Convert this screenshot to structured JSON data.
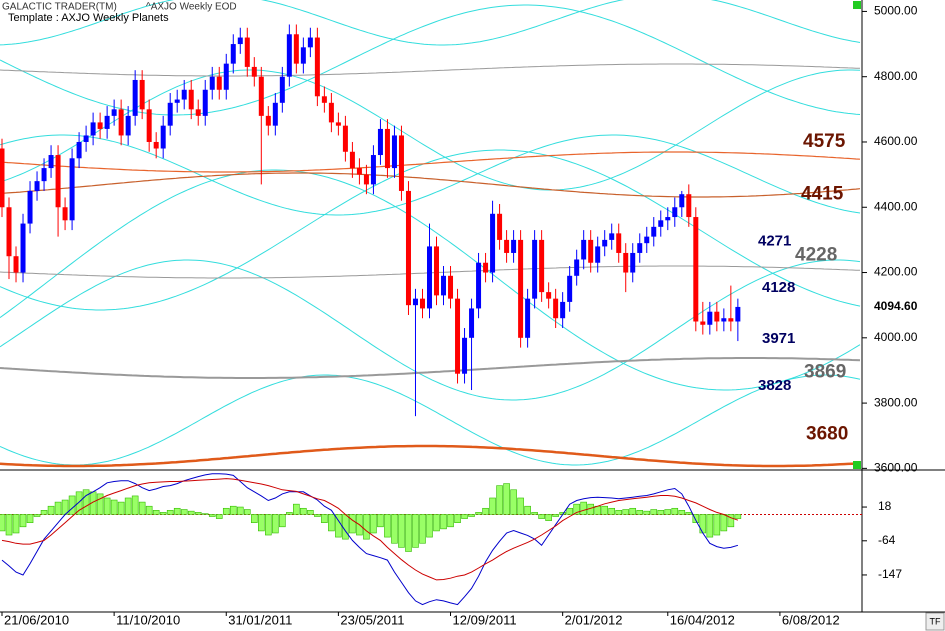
{
  "chart_data": {
    "type": "candlestick",
    "header": [
      "GALACTIC TRADER(TM)",
      "^AXJO Weekly EOD"
    ],
    "subtitle": "Template : AXJO Weekly Planets",
    "corner_label": "TF",
    "up_color": "#0000ff",
    "down_color": "#ff0000",
    "x": [
      "2010-06-21",
      "2010-06-28",
      "2010-07-05",
      "2010-07-12",
      "2010-07-19",
      "2010-07-26",
      "2010-08-02",
      "2010-08-09",
      "2010-08-16",
      "2010-08-23",
      "2010-08-30",
      "2010-09-06",
      "2010-09-13",
      "2010-09-20",
      "2010-09-27",
      "2010-10-04",
      "2010-10-11",
      "2010-10-18",
      "2010-10-25",
      "2010-11-01",
      "2010-11-08",
      "2010-11-15",
      "2010-11-22",
      "2010-11-29",
      "2010-12-06",
      "2010-12-13",
      "2010-12-20",
      "2010-12-27",
      "2011-01-03",
      "2011-01-10",
      "2011-01-17",
      "2011-01-24",
      "2011-01-31",
      "2011-02-07",
      "2011-02-14",
      "2011-02-21",
      "2011-02-28",
      "2011-03-07",
      "2011-03-14",
      "2011-03-21",
      "2011-03-28",
      "2011-04-04",
      "2011-04-11",
      "2011-04-18",
      "2011-04-25",
      "2011-05-02",
      "2011-05-09",
      "2011-05-16",
      "2011-05-23",
      "2011-05-30",
      "2011-06-06",
      "2011-06-13",
      "2011-06-20",
      "2011-06-27",
      "2011-07-04",
      "2011-07-11",
      "2011-07-18",
      "2011-07-25",
      "2011-08-01",
      "2011-08-08",
      "2011-08-15",
      "2011-08-22",
      "2011-08-29",
      "2011-09-05",
      "2011-09-12",
      "2011-09-19",
      "2011-09-26",
      "2011-10-03",
      "2011-10-10",
      "2011-10-17",
      "2011-10-24",
      "2011-10-31",
      "2011-11-07",
      "2011-11-14",
      "2011-11-21",
      "2011-11-28",
      "2011-12-05",
      "2011-12-12",
      "2011-12-19",
      "2011-12-26",
      "2012-01-02",
      "2012-01-09",
      "2012-01-16",
      "2012-01-23",
      "2012-01-30",
      "2012-02-06",
      "2012-02-13",
      "2012-02-20",
      "2012-02-27",
      "2012-03-05",
      "2012-03-12",
      "2012-03-19",
      "2012-03-26",
      "2012-04-02",
      "2012-04-09",
      "2012-04-16",
      "2012-04-23",
      "2012-04-30",
      "2012-05-07",
      "2012-05-14",
      "2012-05-21",
      "2012-05-28",
      "2012-06-04",
      "2012-06-11",
      "2012-06-18",
      "2012-06-25"
    ],
    "open": [
      4580,
      4400,
      4250,
      4200,
      4350,
      4450,
      4480,
      4520,
      4560,
      4400,
      4360,
      4550,
      4600,
      4620,
      4660,
      4640,
      4680,
      4700,
      4620,
      4680,
      4790,
      4700,
      4600,
      4580,
      4650,
      4720,
      4730,
      4760,
      4700,
      4680,
      4760,
      4800,
      4760,
      4840,
      4900,
      4920,
      4830,
      4800,
      4680,
      4650,
      4720,
      4800,
      4930,
      4840,
      4890,
      4920,
      4740,
      4720,
      4660,
      4650,
      4570,
      4520,
      4500,
      4470,
      4560,
      4640,
      4520,
      4620,
      4450,
      4100,
      4120,
      4090,
      4280,
      4130,
      4190,
      4120,
      3890,
      4000,
      4090,
      4230,
      4200,
      4380,
      4300,
      4260,
      4300,
      4000,
      4120,
      4300,
      4140,
      4120,
      4060,
      4110,
      4190,
      4240,
      4300,
      4230,
      4280,
      4300,
      4320,
      4260,
      4200,
      4260,
      4290,
      4310,
      4340,
      4360,
      4370,
      4400,
      4440,
      4370,
      4050,
      4040,
      4080,
      4050,
      4060,
      4050
    ],
    "high": [
      4610,
      4430,
      4280,
      4380,
      4480,
      4510,
      4550,
      4590,
      4590,
      4430,
      4580,
      4630,
      4650,
      4690,
      4690,
      4710,
      4730,
      4730,
      4710,
      4820,
      4820,
      4730,
      4630,
      4680,
      4750,
      4760,
      4790,
      4790,
      4730,
      4790,
      4830,
      4830,
      4870,
      4930,
      4950,
      4950,
      4860,
      4830,
      4710,
      4750,
      4830,
      4960,
      4960,
      4920,
      4950,
      4950,
      4770,
      4750,
      4690,
      4680,
      4600,
      4550,
      4530,
      4590,
      4670,
      4670,
      4650,
      4650,
      4480,
      4150,
      4150,
      4350,
      4310,
      4220,
      4220,
      4150,
      4030,
      4120,
      4260,
      4260,
      4420,
      4410,
      4330,
      4330,
      4330,
      4150,
      4330,
      4330,
      4170,
      4150,
      4140,
      4220,
      4270,
      4330,
      4330,
      4310,
      4330,
      4350,
      4350,
      4290,
      4290,
      4320,
      4340,
      4370,
      4390,
      4400,
      4430,
      4450,
      4470,
      4400,
      4110,
      4110,
      4110,
      4090,
      4160,
      4120
    ],
    "low": [
      4370,
      4180,
      4170,
      4170,
      4320,
      4420,
      4450,
      4490,
      4310,
      4330,
      4330,
      4520,
      4570,
      4590,
      4610,
      4610,
      4650,
      4590,
      4590,
      4650,
      4670,
      4570,
      4550,
      4550,
      4620,
      4690,
      4700,
      4670,
      4650,
      4650,
      4730,
      4730,
      4730,
      4810,
      4870,
      4800,
      4770,
      4470,
      4620,
      4620,
      4690,
      4770,
      4810,
      4810,
      4860,
      4710,
      4690,
      4630,
      4620,
      4540,
      4490,
      4470,
      4440,
      4440,
      4530,
      4490,
      4490,
      4420,
      4070,
      3760,
      4060,
      4060,
      4100,
      4100,
      4090,
      3860,
      3860,
      3840,
      4060,
      4170,
      4170,
      4270,
      4230,
      4230,
      3970,
      3970,
      4090,
      4110,
      4090,
      4030,
      4030,
      4080,
      4160,
      4210,
      4200,
      4200,
      4250,
      4270,
      4230,
      4140,
      4170,
      4230,
      4260,
      4280,
      4310,
      4330,
      4340,
      4370,
      4340,
      4020,
      4010,
      4010,
      4020,
      4020,
      4020,
      3990
    ],
    "close": [
      4400,
      4250,
      4200,
      4350,
      4450,
      4480,
      4520,
      4560,
      4400,
      4360,
      4550,
      4600,
      4620,
      4660,
      4640,
      4680,
      4700,
      4620,
      4680,
      4790,
      4700,
      4600,
      4580,
      4650,
      4720,
      4730,
      4760,
      4700,
      4680,
      4760,
      4800,
      4760,
      4840,
      4900,
      4920,
      4830,
      4800,
      4680,
      4650,
      4720,
      4800,
      4930,
      4840,
      4890,
      4920,
      4740,
      4720,
      4660,
      4650,
      4570,
      4520,
      4500,
      4470,
      4560,
      4640,
      4520,
      4620,
      4450,
      4100,
      4120,
      4090,
      4280,
      4130,
      4190,
      4120,
      3890,
      4000,
      4090,
      4230,
      4200,
      4380,
      4300,
      4260,
      4300,
      4000,
      4120,
      4300,
      4140,
      4120,
      4060,
      4110,
      4190,
      4240,
      4300,
      4230,
      4280,
      4300,
      4320,
      4260,
      4200,
      4260,
      4290,
      4310,
      4340,
      4360,
      4370,
      4400,
      4440,
      4370,
      4050,
      4040,
      4080,
      4050,
      4060,
      4050,
      4094.6
    ],
    "last_label": "4094.60",
    "xlim": [
      "2010-06-19",
      "2012-10-27"
    ],
    "xticks": [
      {
        "value": "2010-06-21",
        "label": "21/06/2010"
      },
      {
        "value": "2010-10-11",
        "label": "11/10/2010"
      },
      {
        "value": "2011-01-31",
        "label": "31/01/2011"
      },
      {
        "value": "2011-05-23",
        "label": "23/05/2011"
      },
      {
        "value": "2011-09-12",
        "label": "12/09/2011"
      },
      {
        "value": "2012-01-02",
        "label": "2/01/2012"
      },
      {
        "value": "2012-04-16",
        "label": "16/04/2012"
      },
      {
        "value": "2012-08-06",
        "label": "6/08/2012"
      }
    ],
    "ylim": [
      3595,
      5035
    ],
    "yticks": [
      {
        "value": 3600,
        "label": "3600.00"
      },
      {
        "value": 3800,
        "label": "3800.00"
      },
      {
        "value": 4000,
        "label": "4000.00"
      },
      {
        "value": 4200,
        "label": "4200.00"
      },
      {
        "value": 4400,
        "label": "4400.00"
      },
      {
        "value": 4600,
        "label": "4600.00"
      },
      {
        "value": 4800,
        "label": "4800.00"
      },
      {
        "value": 5000,
        "label": "5000.00"
      }
    ],
    "level_labels": [
      {
        "value": 4575,
        "color": "#6b1500"
      },
      {
        "value": 4415,
        "color": "#6b1500"
      },
      {
        "value": 4271,
        "color": "#000060"
      },
      {
        "value": 4228,
        "color": "#666666"
      },
      {
        "value": 4128,
        "color": "#000060"
      },
      {
        "value": 3971,
        "color": "#000060"
      },
      {
        "value": 3869,
        "color": "#666666"
      },
      {
        "value": 3828,
        "color": "#000060"
      },
      {
        "value": 3680,
        "color": "#6b1500"
      }
    ],
    "indicator": {
      "histogram": [
        -40,
        -50,
        -45,
        -30,
        -20,
        -5,
        10,
        20,
        30,
        35,
        45,
        55,
        60,
        55,
        50,
        40,
        35,
        30,
        40,
        45,
        30,
        20,
        10,
        5,
        10,
        15,
        12,
        8,
        5,
        2,
        -5,
        -10,
        15,
        20,
        18,
        12,
        -20,
        -40,
        -50,
        -45,
        -30,
        5,
        25,
        15,
        10,
        -5,
        -20,
        -40,
        -55,
        -60,
        -45,
        -50,
        -60,
        -45,
        -30,
        -55,
        -70,
        -80,
        -90,
        -80,
        -70,
        -55,
        -40,
        -35,
        -30,
        -20,
        -10,
        -5,
        5,
        15,
        40,
        70,
        75,
        60,
        40,
        20,
        5,
        -10,
        -15,
        -5,
        5,
        15,
        25,
        30,
        25,
        20,
        20,
        15,
        10,
        12,
        15,
        10,
        8,
        12,
        10,
        12,
        15,
        10,
        5,
        -20,
        -45,
        -55,
        -50,
        -40,
        -30,
        -10
      ],
      "histogram_color": "#99ff66",
      "series": [
        {
          "color": "#0000cc",
          "values": [
            -111,
            -125,
            -140,
            -147,
            -120,
            -90,
            -60,
            -40,
            -20,
            0,
            15,
            30,
            46,
            55,
            65,
            77,
            80,
            82,
            82,
            75,
            65,
            58,
            62,
            68,
            70,
            75,
            82,
            87,
            92,
            96,
            99,
            99,
            98,
            95,
            80,
            65,
            55,
            45,
            34,
            40,
            50,
            55,
            55,
            55,
            45,
            35,
            20,
            10,
            -15,
            -40,
            -63,
            -80,
            -95,
            -100,
            -105,
            -111,
            -140,
            -165,
            -190,
            -210,
            -219,
            -212,
            -207,
            -210,
            -215,
            -219,
            -200,
            -180,
            -150,
            -115,
            -87,
            -65,
            -45,
            -39,
            -45,
            -51,
            -60,
            -75,
            -50,
            -25,
            0,
            25,
            34,
            38,
            41,
            42,
            41,
            40,
            38,
            40,
            42,
            44,
            46,
            50,
            55,
            60,
            63,
            50,
            20,
            -14,
            -45,
            -70,
            -78,
            -82,
            -80,
            -75
          ]
        },
        {
          "color": "#cc0000",
          "values": [
            -63,
            -66,
            -70,
            -72,
            -72,
            -68,
            -63,
            -50,
            -35,
            -20,
            -5,
            10,
            20,
            30,
            38,
            46,
            52,
            58,
            64,
            70,
            74,
            77,
            78,
            79,
            80,
            80,
            81,
            82,
            83,
            84,
            85,
            86,
            87,
            86,
            83,
            80,
            77,
            74,
            70,
            65,
            60,
            58,
            56,
            50,
            44,
            38,
            34,
            25,
            15,
            0,
            -14,
            -25,
            -40,
            -52,
            -63,
            -80,
            -95,
            -110,
            -123,
            -135,
            -145,
            -152,
            -159,
            -158,
            -155,
            -150,
            -147,
            -140,
            -130,
            -120,
            -111,
            -100,
            -90,
            -82,
            -75,
            -68,
            -60,
            -50,
            -39,
            -28,
            -15,
            -5,
            5,
            10,
            15,
            20,
            26,
            30,
            34,
            36,
            38,
            40,
            42,
            44,
            46,
            46,
            44,
            40,
            34,
            28,
            20,
            12,
            5,
            0,
            -8,
            -14
          ]
        }
      ],
      "ylim": [
        -237,
        108
      ],
      "yticks": [
        18,
        -64,
        -147
      ]
    }
  }
}
